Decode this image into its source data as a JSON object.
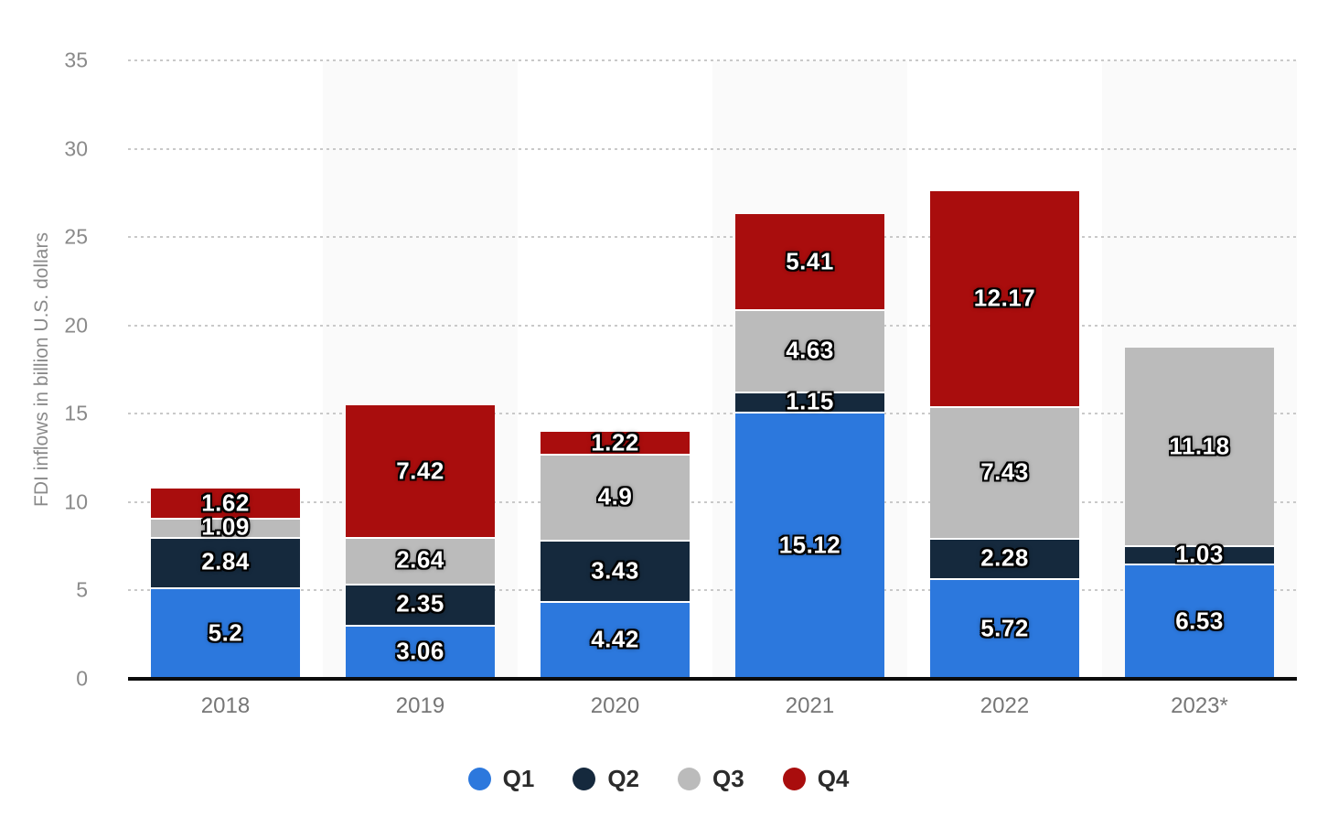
{
  "chart_data": {
    "type": "bar",
    "stacked": true,
    "title": "",
    "xlabel": "",
    "ylabel": "FDI inflows in billion U.S. dollars",
    "categories": [
      "2018",
      "2019",
      "2020",
      "2021",
      "2022",
      "2023*"
    ],
    "series": [
      {
        "name": "Q1",
        "color": "#2c78dd",
        "values": [
          5.2,
          3.06,
          4.42,
          15.12,
          5.72,
          6.53
        ]
      },
      {
        "name": "Q2",
        "color": "#15293d",
        "values": [
          2.84,
          2.35,
          3.43,
          1.15,
          2.28,
          1.03
        ]
      },
      {
        "name": "Q3",
        "color": "#bbbbbb",
        "values": [
          1.09,
          2.64,
          4.9,
          4.63,
          7.43,
          11.18
        ]
      },
      {
        "name": "Q4",
        "color": "#a90d0d",
        "values": [
          1.62,
          7.42,
          1.22,
          5.41,
          12.17,
          null
        ]
      }
    ],
    "ylim": [
      0,
      35
    ],
    "yticks": [
      0,
      5,
      10,
      15,
      20,
      25,
      30,
      35
    ],
    "grid": "horizontal-dotted",
    "gridline_color": "#c9c9c9",
    "legend_position": "bottom",
    "plot_band_color": "#fafafa",
    "axis_line_color": "#0c0c0c",
    "tick_label_color": "#8a8a8a",
    "value_label_color": "#ffffff"
  }
}
